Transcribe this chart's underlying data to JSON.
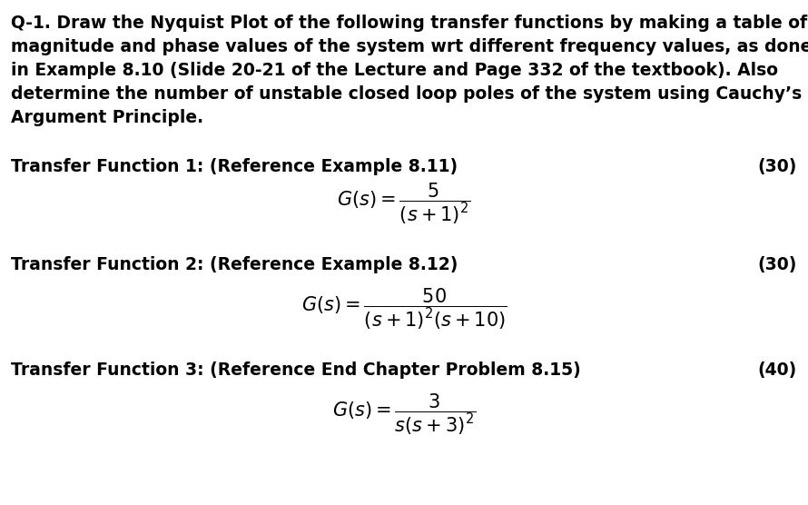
{
  "background_color": "#ffffff",
  "para_lines": [
    "Q-1. Draw the Nyquist Plot of the following transfer functions by making a table of",
    "magnitude and phase values of the system wrt different frequency values, as done",
    "in Example 8.10 (Slide 20-21 of the Lecture and Page 332 of the textbook). Also",
    "determine the number of unstable closed loop poles of the system using Cauchy’s",
    "Argument Principle."
  ],
  "tf1_label": "Transfer Function 1: (Reference Example 8.11)",
  "tf1_points": "(30)",
  "tf1_eq": "$G(s) = \\dfrac{5}{(s + 1)^2}$",
  "tf2_label": "Transfer Function 2: (Reference Example 8.12)",
  "tf2_points": "(30)",
  "tf2_eq": "$G(s) = \\dfrac{50}{(s + 1)^2(s + 10)}$",
  "tf3_label": "Transfer Function 3: (Reference End Chapter Problem 8.15)",
  "tf3_points": "(40)",
  "tf3_eq": "$G(s) = \\dfrac{3}{s(s + 3)^2}$",
  "bold_fontsize": 13.5,
  "math_fontsize": 15,
  "label_fontsize": 13.5
}
